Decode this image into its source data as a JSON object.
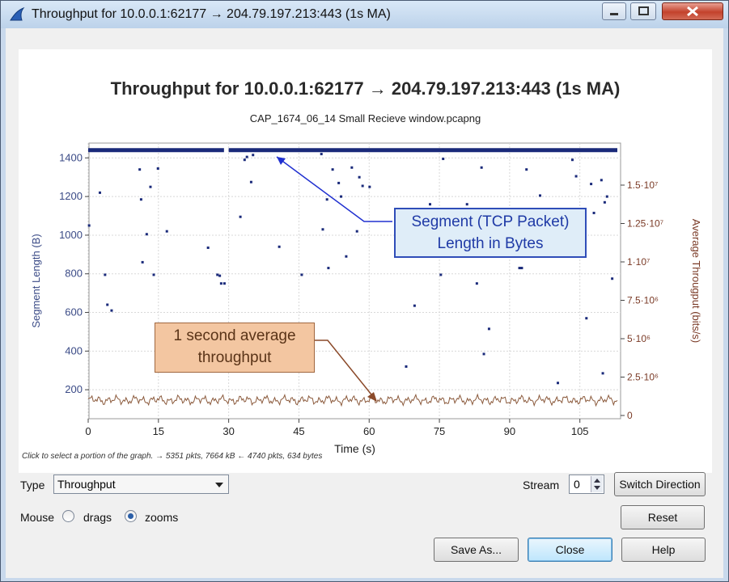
{
  "window": {
    "title": "Throughput for 10.0.0.1:62177 → 204.79.197.213:443 (1s MA)"
  },
  "chart_header": {
    "title": "Throughput for 10.0.0.1:62177 → 204.79.197.213:443 (1s MA)",
    "subtitle": "CAP_1674_06_14 Small Recieve window.pcapng"
  },
  "annotations": {
    "segment_callout_line1": "Segment (TCP Packet)",
    "segment_callout_line2": "Length in Bytes",
    "avg_callout_line1": "1 second average",
    "avg_callout_line2": "throughput"
  },
  "status": {
    "hint": "Click to select a portion of the graph. → 5351 pkts, 7664 kB ← 4740 pkts, 634 bytes"
  },
  "controls": {
    "type_label": "Type",
    "type_value": "Throughput",
    "stream_label": "Stream",
    "stream_value": "0",
    "switch_direction": "Switch Direction",
    "mouse_label": "Mouse",
    "drags_label": "drags",
    "zooms_label": "zooms",
    "mouse_mode": "zooms",
    "reset": "Reset",
    "save_as": "Save As...",
    "close": "Close",
    "help": "Help"
  },
  "chart_data": {
    "type": "scatter",
    "xlabel": "Time (s)",
    "ylabel": "Segment Length (B)",
    "y2label": "Average Througput (bits/s)",
    "xlim": [
      0,
      113
    ],
    "ylim": [
      50,
      1460
    ],
    "y2lim": [
      0,
      17000000
    ],
    "x_ticks": [
      "0",
      "15",
      "30",
      "45",
      "60",
      "75",
      "90",
      "105"
    ],
    "y_ticks": [
      "200",
      "400",
      "600",
      "800",
      "1000",
      "1200",
      "1400"
    ],
    "y2_ticks": [
      "0",
      "2.5·10⁶",
      "5·10⁶",
      "7.5·10⁶",
      "1·10⁷",
      "1.25·10⁷",
      "1.5·10⁷"
    ],
    "grid": true,
    "colors": {
      "segments": "#1a2a7a",
      "throughput": "#8b5a3c",
      "left_axis_text": "#3a4a86",
      "right_axis_text": "#7a3a26",
      "blue_arrow": "#2030d0",
      "brown_arrow": "#8b4a2a"
    },
    "series": [
      {
        "name": "Segment Length (B)",
        "band": {
          "x_from": [
            0,
            29
          ],
          "x_from2": [
            30,
            113
          ],
          "y": 1440
        },
        "points": [
          [
            0.2,
            1050
          ],
          [
            2.5,
            1220
          ],
          [
            3.6,
            795
          ],
          [
            4.1,
            640
          ],
          [
            5,
            610
          ],
          [
            11,
            1340
          ],
          [
            11.3,
            1185
          ],
          [
            11.6,
            860
          ],
          [
            12.5,
            1005
          ],
          [
            13.3,
            1250
          ],
          [
            14,
            795
          ],
          [
            14.9,
            1345
          ],
          [
            16.8,
            1020
          ],
          [
            25.6,
            935
          ],
          [
            27.6,
            795
          ],
          [
            28.1,
            790
          ],
          [
            28.4,
            750
          ],
          [
            29.1,
            750
          ],
          [
            32.5,
            1095
          ],
          [
            33.4,
            1390
          ],
          [
            33.9,
            1405
          ],
          [
            35.2,
            1415
          ],
          [
            34.8,
            1275
          ],
          [
            40.8,
            940
          ],
          [
            45.6,
            795
          ],
          [
            49.8,
            1420
          ],
          [
            50.1,
            1030
          ],
          [
            51,
            1185
          ],
          [
            51.3,
            830
          ],
          [
            52.2,
            1340
          ],
          [
            53.5,
            1270
          ],
          [
            54,
            1200
          ],
          [
            55.1,
            890
          ],
          [
            56.3,
            1350
          ],
          [
            57.4,
            1020
          ],
          [
            57.9,
            1300
          ],
          [
            58.6,
            1255
          ],
          [
            60.1,
            1250
          ],
          [
            67.9,
            320
          ],
          [
            69.7,
            635
          ],
          [
            73,
            1160
          ],
          [
            75.3,
            795
          ],
          [
            75.8,
            1395
          ],
          [
            80.9,
            1160
          ],
          [
            83,
            750
          ],
          [
            84,
            1350
          ],
          [
            84.5,
            385
          ],
          [
            85.6,
            515
          ],
          [
            86.5,
            1130
          ],
          [
            92.1,
            830
          ],
          [
            92.6,
            830
          ],
          [
            93.6,
            1340
          ],
          [
            96.5,
            1205
          ],
          [
            100.3,
            235
          ],
          [
            101.2,
            1110
          ],
          [
            103.4,
            1390
          ],
          [
            104.2,
            1305
          ],
          [
            106.4,
            570
          ],
          [
            107.4,
            1265
          ],
          [
            108,
            1115
          ],
          [
            109.6,
            1285
          ],
          [
            109.9,
            285
          ],
          [
            110.3,
            1170
          ],
          [
            110.8,
            1200
          ],
          [
            111.9,
            775
          ]
        ]
      },
      {
        "name": "Average Througput (bits/s)",
        "approx_value": 1000000,
        "range": [
          500000,
          1400000
        ]
      }
    ]
  }
}
